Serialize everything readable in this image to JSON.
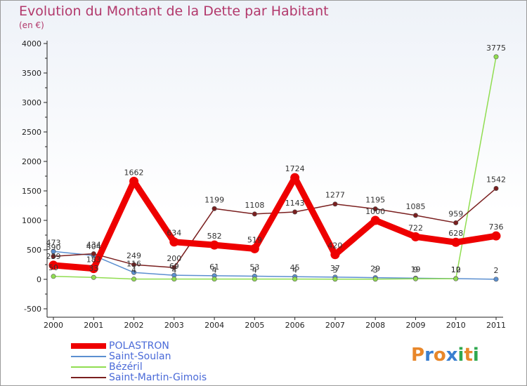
{
  "title": "Evolution du Montant de la Dette par Habitant",
  "subtitle": "(en €)",
  "brand": {
    "text": "Proxiti",
    "letters": [
      "P",
      "r",
      "o",
      "x",
      "i",
      "t",
      "i"
    ],
    "colors": [
      "#e8872a",
      "#3a7fd0",
      "#e8872a",
      "#3a7fd0",
      "#2fa84f",
      "#e8872a",
      "#2fa84f"
    ]
  },
  "chart_data": {
    "type": "line",
    "title": "Evolution du Montant de la Dette par Habitant",
    "subtitle": "(en €)",
    "xlabel": "",
    "ylabel": "",
    "categories": [
      "2000",
      "2001",
      "2002",
      "2003",
      "2004",
      "2005",
      "2006",
      "2007",
      "2008",
      "2009",
      "2010",
      "2011"
    ],
    "ylim": [
      -500,
      4000
    ],
    "yticks": [
      -500,
      0,
      500,
      1000,
      1500,
      2000,
      2500,
      3000,
      3500,
      4000
    ],
    "grid": false,
    "legend": "bottom-left",
    "series": [
      {
        "name": "POLASTRON",
        "color": "#ee0000",
        "values": [
          239,
          183,
          1662,
          634,
          582,
          519,
          1724,
          420,
          1000,
          722,
          628,
          736
        ],
        "labels": [
          "239",
          "183",
          "1662",
          "634",
          "582",
          "519",
          "1724",
          "420",
          "1000",
          "722",
          "628",
          "736"
        ]
      },
      {
        "name": "Saint-Soulan",
        "color": "#5b8fd0",
        "values": [
          473,
          404,
          116,
          69,
          61,
          53,
          45,
          37,
          29,
          19,
          12,
          2
        ],
        "labels": [
          "473",
          "404",
          "116",
          "69",
          "61",
          "53",
          "45",
          "37",
          "29",
          "19",
          "12",
          "2"
        ]
      },
      {
        "name": "Bézéril",
        "color": "#90dd50",
        "values": [
          50,
          33,
          4,
          4,
          4,
          4,
          4,
          3,
          3,
          9,
          10,
          3775
        ],
        "labels": [
          "50",
          "33",
          "4",
          "4",
          "4",
          "4",
          "4",
          "3",
          "3",
          "9",
          "10",
          "3775"
        ]
      },
      {
        "name": "Saint-Martin-Gimois",
        "color": "#7a1f1f",
        "values": [
          390,
          434,
          249,
          200,
          1199,
          1108,
          1143,
          1277,
          1195,
          1085,
          959,
          1542
        ],
        "labels": [
          "390",
          "434",
          "249",
          "200",
          "1199",
          "1108",
          "1143",
          "1277",
          "1195",
          "1085",
          "959",
          "1542"
        ]
      }
    ]
  }
}
